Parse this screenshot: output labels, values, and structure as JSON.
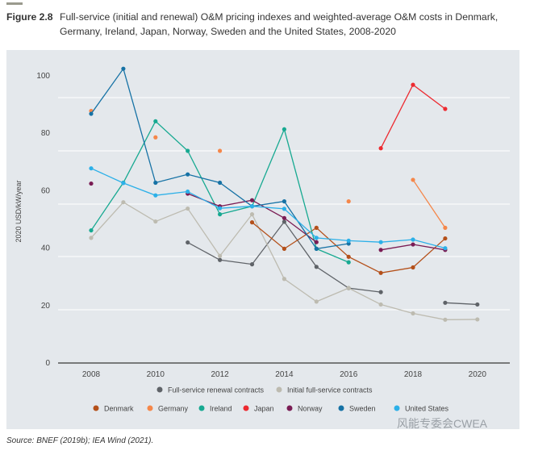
{
  "figure": {
    "label": "Figure 2.8",
    "caption": "Full-service (initial and renewal) O&M pricing indexes and weighted-average O&M costs in Denmark, Germany, Ireland, Japan, Norway, Sweden and the United States, 2008-2020"
  },
  "source": "Source: BNEF (2019b); IEA Wind (2021).",
  "watermark": "风能专委会CWEA",
  "chart_data": {
    "type": "line",
    "title": "",
    "xlabel": "",
    "ylabel": "2020 USD/kW/year",
    "x": [
      2008,
      2009,
      2010,
      2011,
      2012,
      2013,
      2014,
      2015,
      2016,
      2017,
      2018,
      2019,
      2020
    ],
    "x_tick_labels": [
      "2008",
      "2010",
      "2012",
      "2014",
      "2016",
      "2018",
      "2020"
    ],
    "y_tick_labels": [
      "0",
      "20",
      "40",
      "60",
      "80",
      "100"
    ],
    "ylim": [
      0,
      110
    ],
    "xlim": [
      2007,
      2021
    ],
    "grid": "horizontal",
    "legend_placement": "bottom",
    "series": [
      {
        "name": "Full-service renewal contracts",
        "color": "#5f6368",
        "values": [
          null,
          null,
          null,
          41.7,
          35.6,
          34.1,
          48.9,
          33.2,
          25.8,
          24.4,
          null,
          20.7,
          20.1
        ]
      },
      {
        "name": "Initial full-service contracts",
        "color": "#bdbbb0",
        "values": [
          43.3,
          55.7,
          49.0,
          53.5,
          37.0,
          51.5,
          29.0,
          21.1,
          25.8,
          20.1,
          17.0,
          14.8,
          14.9
        ]
      },
      {
        "name": "Denmark",
        "color": "#b4501a",
        "values": [
          null,
          null,
          null,
          null,
          null,
          48.7,
          39.5,
          46.8,
          36.7,
          31.1,
          33.0,
          43.1,
          null
        ]
      },
      {
        "name": "Germany",
        "color": "#f5874a",
        "values": [
          87.5,
          null,
          78.3,
          null,
          73.6,
          null,
          null,
          null,
          56.0,
          null,
          63.5,
          46.8,
          null
        ]
      },
      {
        "name": "Ireland",
        "color": "#17a991",
        "values": [
          45.9,
          62.5,
          83.9,
          73.6,
          51.5,
          54.3,
          81.1,
          39.5,
          34.8,
          null,
          null,
          null,
          null
        ]
      },
      {
        "name": "Japan",
        "color": "#ed2a30",
        "values": [
          null,
          null,
          null,
          null,
          null,
          null,
          null,
          null,
          null,
          74.5,
          96.6,
          88.2,
          null
        ]
      },
      {
        "name": "Norway",
        "color": "#7a1c54",
        "values": [
          62.2,
          null,
          null,
          58.7,
          54.3,
          56.4,
          50.2,
          41.8,
          null,
          39.1,
          41.0,
          39.1,
          null
        ]
      },
      {
        "name": "Sweden",
        "color": "#1672a5",
        "values": [
          86.5,
          102.2,
          62.5,
          65.4,
          62.5,
          54.3,
          56.0,
          39.5,
          41.3,
          null,
          null,
          null,
          null
        ]
      },
      {
        "name": "United States",
        "color": "#2cb0e8",
        "values": [
          67.5,
          62.4,
          58.1,
          59.4,
          53.6,
          54.3,
          53.4,
          43.3,
          42.3,
          41.8,
          42.7,
          39.7,
          null
        ]
      }
    ]
  }
}
